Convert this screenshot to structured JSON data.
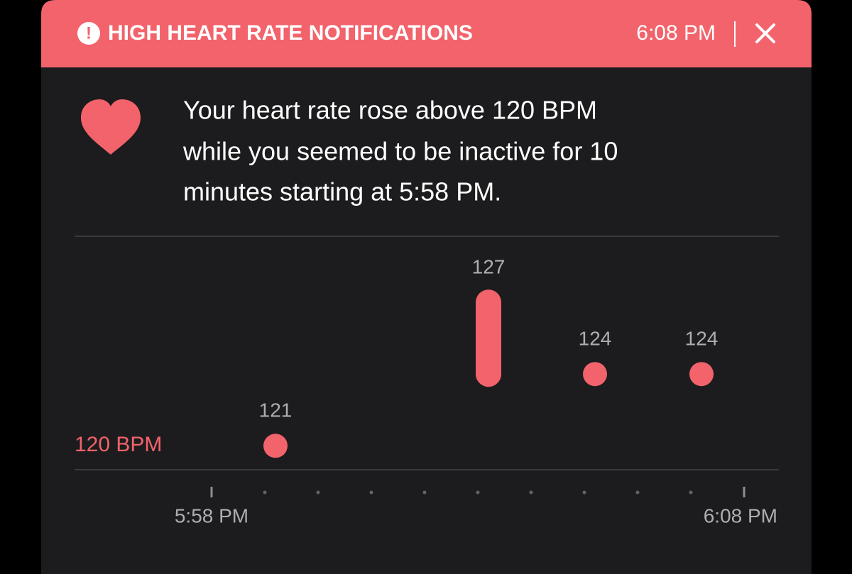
{
  "header": {
    "title": "HIGH HEART RATE NOTIFICATIONS",
    "time": "6:08 PM"
  },
  "message": [
    "Your heart rate rose above 120 BPM",
    "while you seemed to be inactive for 10",
    "minutes starting at 5:58 PM."
  ],
  "chart_data": {
    "type": "range-dot",
    "color": "#f2636b",
    "x": [
      1.2,
      5.2,
      7.2,
      9.2
    ],
    "values": [
      121,
      127,
      124,
      124
    ],
    "lows": [
      null,
      124,
      null,
      null
    ],
    "threshold": {
      "value": 120,
      "label": "120 BPM"
    },
    "xlim": [
      0,
      10
    ],
    "xticks": [
      {
        "value": 0,
        "label": "5:58 PM"
      },
      {
        "value": 10,
        "label": "6:08 PM"
      }
    ],
    "xminorticks": [
      1,
      2,
      3,
      4,
      5,
      6,
      7,
      8,
      9
    ],
    "ylim": [
      120,
      130
    ]
  }
}
